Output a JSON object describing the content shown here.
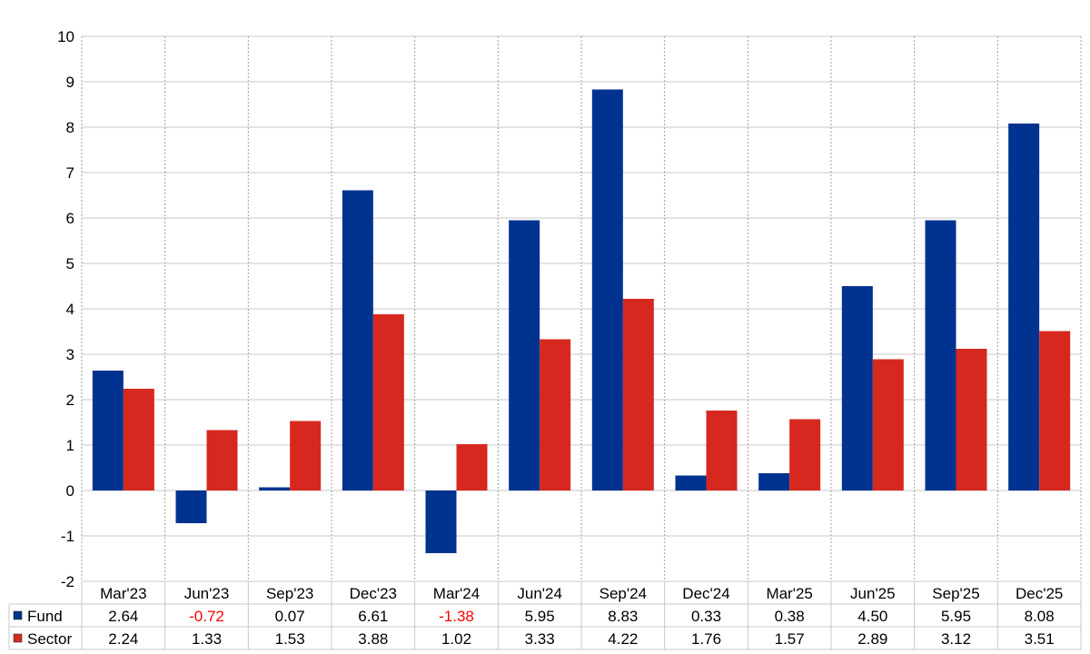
{
  "colors": {
    "fund": "#00338f",
    "sector": "#d6281f",
    "negative_text": "#ff0000",
    "grid": "#c8c8c8",
    "text": "#000000"
  },
  "chart_data": {
    "type": "bar",
    "categories": [
      "Mar'23",
      "Jun'23",
      "Sep'23",
      "Dec'23",
      "Mar'24",
      "Jun'24",
      "Sep'24",
      "Dec'24",
      "Mar'25",
      "Jun'25",
      "Sep'25",
      "Dec'25"
    ],
    "series": [
      {
        "name": "Fund",
        "values": [
          2.64,
          -0.72,
          0.07,
          6.61,
          -1.38,
          5.95,
          8.83,
          0.33,
          0.38,
          4.5,
          5.95,
          8.08
        ],
        "labels": [
          "2.64",
          "-0.72",
          "0.07",
          "6.61",
          "-1.38",
          "5.95",
          "8.83",
          "0.33",
          "0.38",
          "4.50",
          "5.95",
          "8.08"
        ]
      },
      {
        "name": "Sector",
        "values": [
          2.24,
          1.33,
          1.53,
          3.88,
          1.02,
          3.33,
          4.22,
          1.76,
          1.57,
          2.89,
          3.12,
          3.51
        ],
        "labels": [
          "2.24",
          "1.33",
          "1.53",
          "3.88",
          "1.02",
          "3.33",
          "4.22",
          "1.76",
          "1.57",
          "2.89",
          "3.12",
          "3.51"
        ]
      }
    ],
    "ylim": [
      -2,
      10
    ],
    "yticks": [
      "10",
      "9",
      "8",
      "7",
      "6",
      "5",
      "4",
      "3",
      "2",
      "1",
      "0",
      "-1",
      "-2"
    ],
    "title": "",
    "xlabel": "",
    "ylabel": "",
    "grid": true,
    "legend": "data-table-left"
  }
}
